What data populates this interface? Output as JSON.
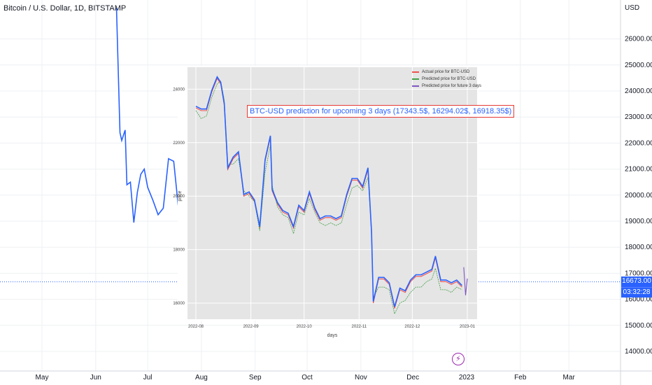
{
  "tradingview": {
    "symbol_title": "Bitcoin / U.S. Dollar, 1D, BITSTAMP",
    "currency": "USD",
    "price_tag": {
      "price": "16673.00",
      "countdown": "03:32:28"
    },
    "event_icon": "lightning-icon",
    "colors": {
      "line": "#2962ff",
      "grid": "#eef0f3",
      "axis_text": "#131722",
      "tag": "#2962ff"
    }
  },
  "inset": {
    "prediction_text": "BTC-USD prediction for upcoming 3 days (17343.5$, 16294.02$, 16918.35$)",
    "colors": {
      "actual": "#ef5350",
      "predicted": "#43a047",
      "future": "#7e57c2",
      "main": "#2962ff",
      "bg": "#e5e5e5"
    }
  },
  "chart_data": [
    {
      "type": "line",
      "title": "Bitcoin / U.S. Dollar, 1D, BITSTAMP",
      "xlabel": "",
      "ylabel": "USD",
      "x_tick_labels": [
        "May",
        "Jun",
        "Jul",
        "Aug",
        "Sep",
        "Oct",
        "Nov",
        "Dec",
        "2023",
        "Feb",
        "Mar"
      ],
      "y_tick_labels": [
        "14000.00",
        "15000.00",
        "16000.00",
        "17000.00",
        "18000.00",
        "19000.00",
        "20000.00",
        "21000.00",
        "22000.00",
        "23000.00",
        "24000.00",
        "25000.00",
        "26000.00"
      ],
      "ylim": [
        13500,
        27200
      ],
      "grid": true,
      "last_price": 16673.0,
      "series": [
        {
          "name": "BTCUSD",
          "x": [
            "2022-06-13",
            "2022-06-15",
            "2022-06-16",
            "2022-06-18",
            "2022-06-19",
            "2022-06-21",
            "2022-06-23",
            "2022-06-25",
            "2022-06-27",
            "2022-06-29",
            "2022-07-01",
            "2022-07-04",
            "2022-07-07",
            "2022-07-10",
            "2022-07-13",
            "2022-07-16",
            "2022-07-19",
            "2022-07-22",
            "2022-07-25",
            "2022-07-28",
            "2022-07-31"
          ],
          "values": [
            27200,
            22400,
            22100,
            22500,
            20400,
            20500,
            18950,
            20100,
            20800,
            21000,
            20300,
            19800,
            19250,
            19500,
            21400,
            21300,
            19350,
            20200,
            21400,
            22300,
            23100
          ]
        }
      ]
    },
    {
      "type": "line",
      "title": "",
      "xlabel": "days",
      "ylabel": "price",
      "x_tick_labels": [
        "2022-08",
        "2022-09",
        "2022-10",
        "2022-11",
        "2022-12",
        "2023-01"
      ],
      "y_tick_labels": [
        "16000",
        "18000",
        "20000",
        "22000",
        "24000"
      ],
      "ylim": [
        15100,
        25000
      ],
      "grid": true,
      "legend_position": "top-right",
      "annotation": "BTC-USD prediction for upcoming 3 days (17343.5$, 16294.02$, 16918.35$)",
      "series": [
        {
          "name": "Actual price for BTC-USD",
          "x": [
            "2022-08-01",
            "2022-08-04",
            "2022-08-07",
            "2022-08-10",
            "2022-08-13",
            "2022-08-15",
            "2022-08-17",
            "2022-08-19",
            "2022-08-22",
            "2022-08-25",
            "2022-08-28",
            "2022-08-31",
            "2022-09-03",
            "2022-09-06",
            "2022-09-09",
            "2022-09-12",
            "2022-09-13",
            "2022-09-16",
            "2022-09-19",
            "2022-09-22",
            "2022-09-25",
            "2022-09-28",
            "2022-10-01",
            "2022-10-04",
            "2022-10-07",
            "2022-10-10",
            "2022-10-13",
            "2022-10-16",
            "2022-10-19",
            "2022-10-22",
            "2022-10-25",
            "2022-10-28",
            "2022-10-31",
            "2022-11-03",
            "2022-11-06",
            "2022-11-08",
            "2022-11-09",
            "2022-11-12",
            "2022-11-15",
            "2022-11-18",
            "2022-11-21",
            "2022-11-24",
            "2022-11-27",
            "2022-11-30",
            "2022-12-03",
            "2022-12-06",
            "2022-12-09",
            "2022-12-12",
            "2022-12-14",
            "2022-12-17",
            "2022-12-20",
            "2022-12-23",
            "2022-12-26",
            "2022-12-29"
          ],
          "values": [
            23300,
            23200,
            23200,
            23900,
            24400,
            24200,
            23400,
            21000,
            21400,
            21600,
            20000,
            20100,
            19800,
            18800,
            21300,
            22200,
            20200,
            19700,
            19400,
            19300,
            18800,
            19600,
            19400,
            20100,
            19500,
            19100,
            19200,
            19200,
            19100,
            19200,
            20000,
            20600,
            20600,
            20300,
            21000,
            18600,
            16000,
            16900,
            16900,
            16700,
            15800,
            16500,
            16400,
            16800,
            17000,
            17000,
            17100,
            17200,
            17700,
            16800,
            16800,
            16700,
            16800,
            16600
          ],
          "color": "#ef5350"
        },
        {
          "name": "Predicted price for BTC-USD",
          "x": [
            "2022-08-01",
            "2022-08-04",
            "2022-08-07",
            "2022-08-10",
            "2022-08-13",
            "2022-08-15",
            "2022-08-17",
            "2022-08-19",
            "2022-08-22",
            "2022-08-25",
            "2022-08-28",
            "2022-08-31",
            "2022-09-03",
            "2022-09-06",
            "2022-09-09",
            "2022-09-12",
            "2022-09-13",
            "2022-09-16",
            "2022-09-19",
            "2022-09-22",
            "2022-09-25",
            "2022-09-28",
            "2022-10-01",
            "2022-10-04",
            "2022-10-07",
            "2022-10-10",
            "2022-10-13",
            "2022-10-16",
            "2022-10-19",
            "2022-10-22",
            "2022-10-25",
            "2022-10-28",
            "2022-10-31",
            "2022-11-03",
            "2022-11-06",
            "2022-11-08",
            "2022-11-09",
            "2022-11-12",
            "2022-11-15",
            "2022-11-18",
            "2022-11-21",
            "2022-11-24",
            "2022-11-27",
            "2022-11-30",
            "2022-12-03",
            "2022-12-06",
            "2022-12-09",
            "2022-12-12",
            "2022-12-14",
            "2022-12-17",
            "2022-12-20",
            "2022-12-23",
            "2022-12-26",
            "2022-12-29"
          ],
          "values": [
            23200,
            22900,
            23000,
            23700,
            24200,
            24300,
            23600,
            21200,
            21200,
            21400,
            20200,
            20000,
            19800,
            18700,
            20900,
            21900,
            20400,
            19600,
            19300,
            19200,
            18600,
            19400,
            19300,
            19900,
            19400,
            19000,
            18900,
            19000,
            18900,
            19000,
            19700,
            20300,
            20400,
            20200,
            20700,
            18800,
            16200,
            16600,
            16600,
            16500,
            15600,
            16000,
            16100,
            16400,
            16600,
            16600,
            16800,
            16900,
            17300,
            16500,
            16500,
            16400,
            16600,
            16500
          ],
          "color": "#43a047"
        },
        {
          "name": "Predicted price for future 3 days",
          "x": [
            "2022-12-30",
            "2022-12-31",
            "2023-01-01"
          ],
          "values": [
            17343.5,
            16294.02,
            16918.35
          ],
          "color": "#7e57c2"
        }
      ]
    }
  ]
}
